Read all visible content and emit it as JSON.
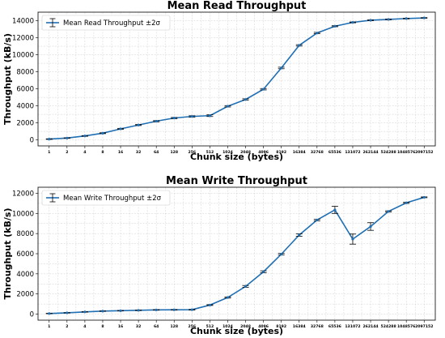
{
  "chart_data": [
    {
      "type": "line",
      "title": "Mean Read Throughput",
      "xlabel": "Chunk size (bytes)",
      "ylabel": "Throughput (kB/s)",
      "categories": [
        "1",
        "2",
        "4",
        "8",
        "16",
        "32",
        "64",
        "128",
        "256",
        "512",
        "1024",
        "2048",
        "4096",
        "8192",
        "16384",
        "32768",
        "65536",
        "131072",
        "262144",
        "524288",
        "1048576",
        "2097152"
      ],
      "series": [
        {
          "name": "Mean Read Throughput ±2σ",
          "values": [
            100,
            220,
            470,
            790,
            1300,
            1750,
            2200,
            2570,
            2760,
            2850,
            3950,
            4750,
            5950,
            8450,
            11100,
            12550,
            13350,
            13800,
            14050,
            14150,
            14250,
            14320
          ],
          "errors": [
            30,
            30,
            40,
            50,
            60,
            60,
            70,
            70,
            80,
            100,
            80,
            80,
            80,
            90,
            80,
            80,
            60,
            50,
            40,
            40,
            40,
            40
          ]
        }
      ],
      "ylim": [
        -700,
        15000
      ],
      "yticks": [
        0,
        2000,
        4000,
        6000,
        8000,
        10000,
        12000,
        14000
      ],
      "grid": true,
      "legend_position": "top-left"
    },
    {
      "type": "line",
      "title": "Mean Write Throughput",
      "xlabel": "Chunk size (bytes)",
      "ylabel": "Throughput (kB/s)",
      "categories": [
        "1",
        "2",
        "4",
        "8",
        "16",
        "32",
        "64",
        "128",
        "256",
        "512",
        "1024",
        "2048",
        "4096",
        "8192",
        "16384",
        "32768",
        "65536",
        "131072",
        "262144",
        "524288",
        "1048576",
        "2097152"
      ],
      "series": [
        {
          "name": "Mean Write Throughput ±2σ",
          "values": [
            60,
            130,
            220,
            300,
            340,
            380,
            420,
            430,
            440,
            900,
            1650,
            2750,
            4200,
            5950,
            7850,
            9350,
            10350,
            7450,
            8700,
            10200,
            11050,
            11600
          ],
          "errors": [
            20,
            20,
            25,
            25,
            25,
            25,
            25,
            25,
            30,
            40,
            60,
            90,
            100,
            80,
            120,
            80,
            350,
            500,
            380,
            60,
            60,
            40
          ]
        }
      ],
      "ylim": [
        -600,
        12600
      ],
      "yticks": [
        0,
        2000,
        4000,
        6000,
        8000,
        10000,
        12000
      ],
      "grid": true,
      "legend_position": "top-left"
    }
  ],
  "colors": {
    "series": "#1f6fb4",
    "errorbar": "#000000",
    "grid": "#d0d0d0"
  }
}
